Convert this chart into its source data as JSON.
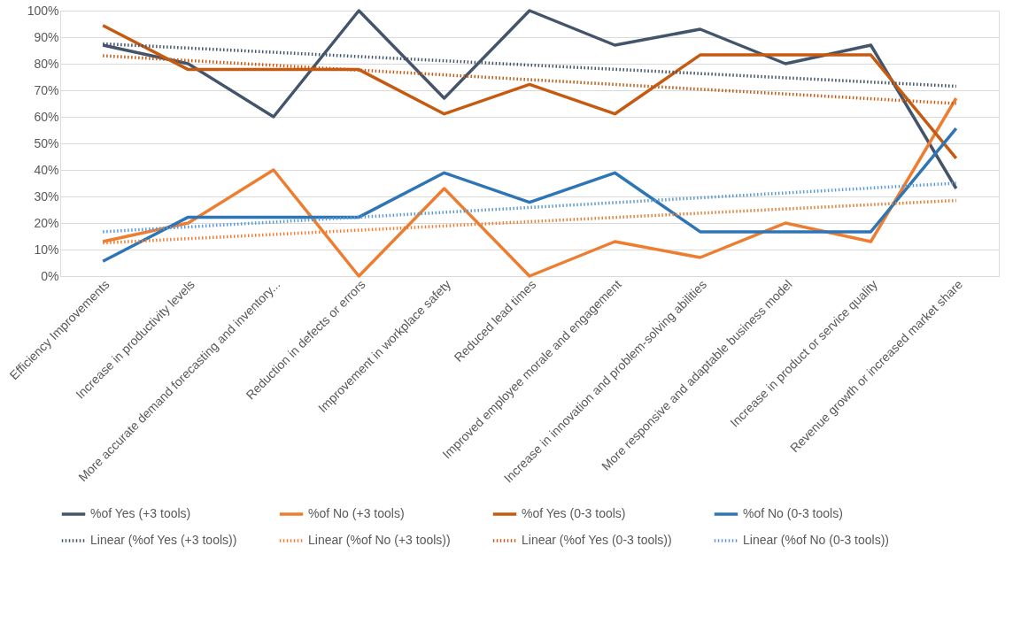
{
  "chart_data": {
    "type": "line",
    "categories": [
      "Efficiency  Improvements",
      "Increase in productivity levels",
      "More accurate demand forecasting and inventory...",
      "Reduction in defects or errors",
      "Improvement in workplace safety",
      "Reduced lead times",
      "Improved employee morale and engagement",
      "Increase in innovation and problem-solving abilities",
      "More responsive and adaptable business model",
      "Increase in product or service quality",
      "Revenue growth or increased market share"
    ],
    "series": [
      {
        "name": "%of Yes (+3 tools)",
        "line_style": "solid",
        "color": "#44546a",
        "values": [
          87,
          80,
          60,
          100,
          67,
          100,
          87,
          93,
          80,
          87,
          33
        ]
      },
      {
        "name": "%of No (+3 tools)",
        "line_style": "solid",
        "color": "#ed7d31",
        "values": [
          13,
          20,
          40,
          0,
          33,
          0,
          13,
          7,
          20,
          13,
          67
        ]
      },
      {
        "name": "%of Yes (0-3 tools)",
        "line_style": "solid",
        "color": "#c55a11",
        "values": [
          94.4,
          77.8,
          77.8,
          77.8,
          61.1,
          72.2,
          61.1,
          83.3,
          83.3,
          83.3,
          44.4
        ]
      },
      {
        "name": "%of No (0-3 tools)",
        "line_style": "solid",
        "color": "#2e75b6",
        "values": [
          5.6,
          22.2,
          22.2,
          22.2,
          38.9,
          27.8,
          38.9,
          16.7,
          16.7,
          16.7,
          55.6
        ]
      },
      {
        "name": "Linear (%of Yes (+3 tools))",
        "line_style": "dotted",
        "color": "#44546a",
        "x": [
          "Efficiency  Improvements",
          "Revenue growth or increased market share"
        ],
        "values": [
          87.5,
          71.5
        ]
      },
      {
        "name": "Linear (%of No (+3 tools))",
        "line_style": "dotted",
        "color": "#ed7d31",
        "x": [
          "Efficiency  Improvements",
          "Revenue growth or increased market share"
        ],
        "values": [
          12.5,
          28.5
        ]
      },
      {
        "name": "Linear (%of Yes (0-3 tools))",
        "line_style": "dotted",
        "color": "#c55a11",
        "x": [
          "Efficiency  Improvements",
          "Revenue growth or increased market share"
        ],
        "values": [
          83,
          65
        ]
      },
      {
        "name": "Linear (%of No (0-3 tools))",
        "line_style": "dotted",
        "color": "#5b9bd5",
        "x": [
          "Efficiency  Improvements",
          "Revenue growth or increased market share"
        ],
        "values": [
          16.7,
          35
        ]
      }
    ],
    "ylim": [
      0,
      100
    ],
    "yticks": [
      {
        "value": 0,
        "label": "0%"
      },
      {
        "value": 10,
        "label": "10%"
      },
      {
        "value": 20,
        "label": "20%"
      },
      {
        "value": 30,
        "label": "30%"
      },
      {
        "value": 40,
        "label": "40%"
      },
      {
        "value": 50,
        "label": "50%"
      },
      {
        "value": 60,
        "label": "60%"
      },
      {
        "value": 70,
        "label": "70%"
      },
      {
        "value": 80,
        "label": "80%"
      },
      {
        "value": 90,
        "label": "90%"
      },
      {
        "value": 100,
        "label": "100%"
      }
    ],
    "grid": "y",
    "legend": "bottom"
  }
}
